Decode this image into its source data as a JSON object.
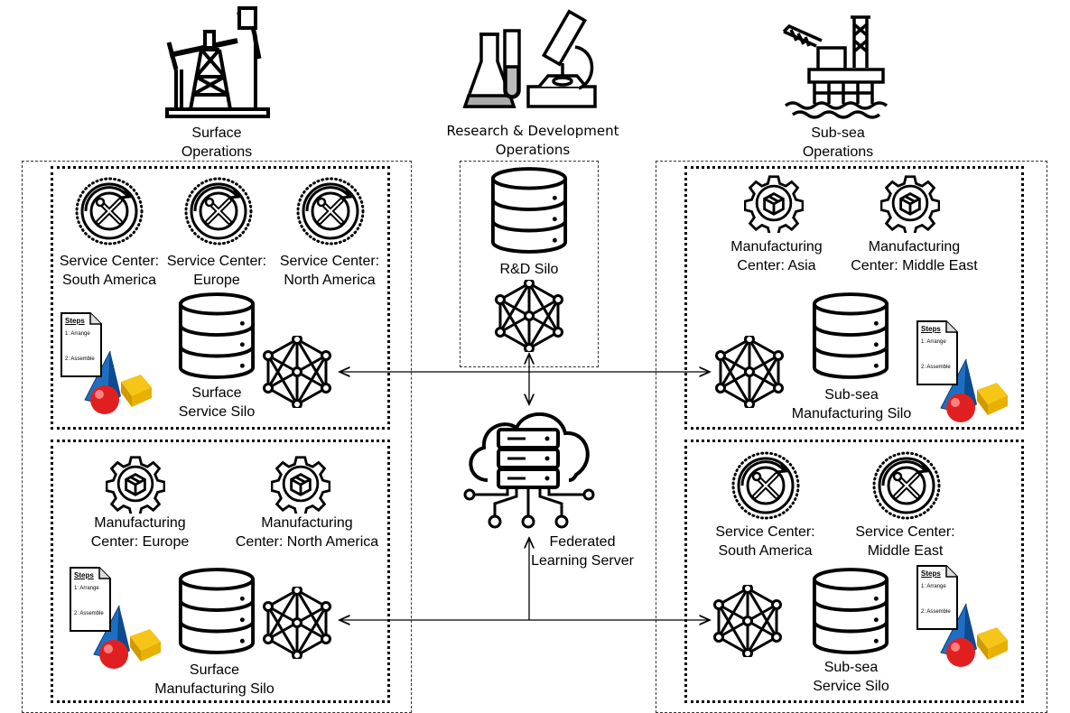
{
  "header": {
    "surface_label": "Surface\nOperations",
    "rnd_label": "Research & Development\nOperations",
    "subsea_label": "Sub-sea\nOperations"
  },
  "rnd": {
    "silo_label": "R&D Silo"
  },
  "server": {
    "label": "Federated\nLearning Server"
  },
  "surface_service": {
    "centers": [
      "Service Center:\nSouth America",
      "Service Center:\nEurope",
      "Service Center:\nNorth America"
    ],
    "silo_label": "Surface\nService Silo"
  },
  "surface_manufacturing": {
    "centers": [
      "Manufacturing\nCenter: Europe",
      "Manufacturing\nCenter: North America"
    ],
    "silo_label": "Surface\nManufacturing Silo"
  },
  "subsea_manufacturing": {
    "centers": [
      "Manufacturing\nCenter: Asia",
      "Manufacturing\nCenter: Middle East"
    ],
    "silo_label": "Sub-sea\nManufacturing Silo"
  },
  "subsea_service": {
    "centers": [
      "Service Center:\nSouth America",
      "Service Center:\nMiddle East"
    ],
    "silo_label": "Sub-sea\nService Silo"
  },
  "steps_doc": {
    "title": "Steps",
    "step1": "1: Arrange",
    "step2": "2: Assemble"
  },
  "icons": {
    "surface": "pumpjack-icon",
    "rnd": "lab-microscope-icon",
    "subsea": "offshore-platform-icon",
    "service": "wrench-screwdriver-cycle-icon",
    "manufacturing": "gear-box-icon",
    "database": "database-icon",
    "network": "neural-network-icon",
    "server": "cloud-server-icon",
    "document": "assembly-steps-icon"
  }
}
